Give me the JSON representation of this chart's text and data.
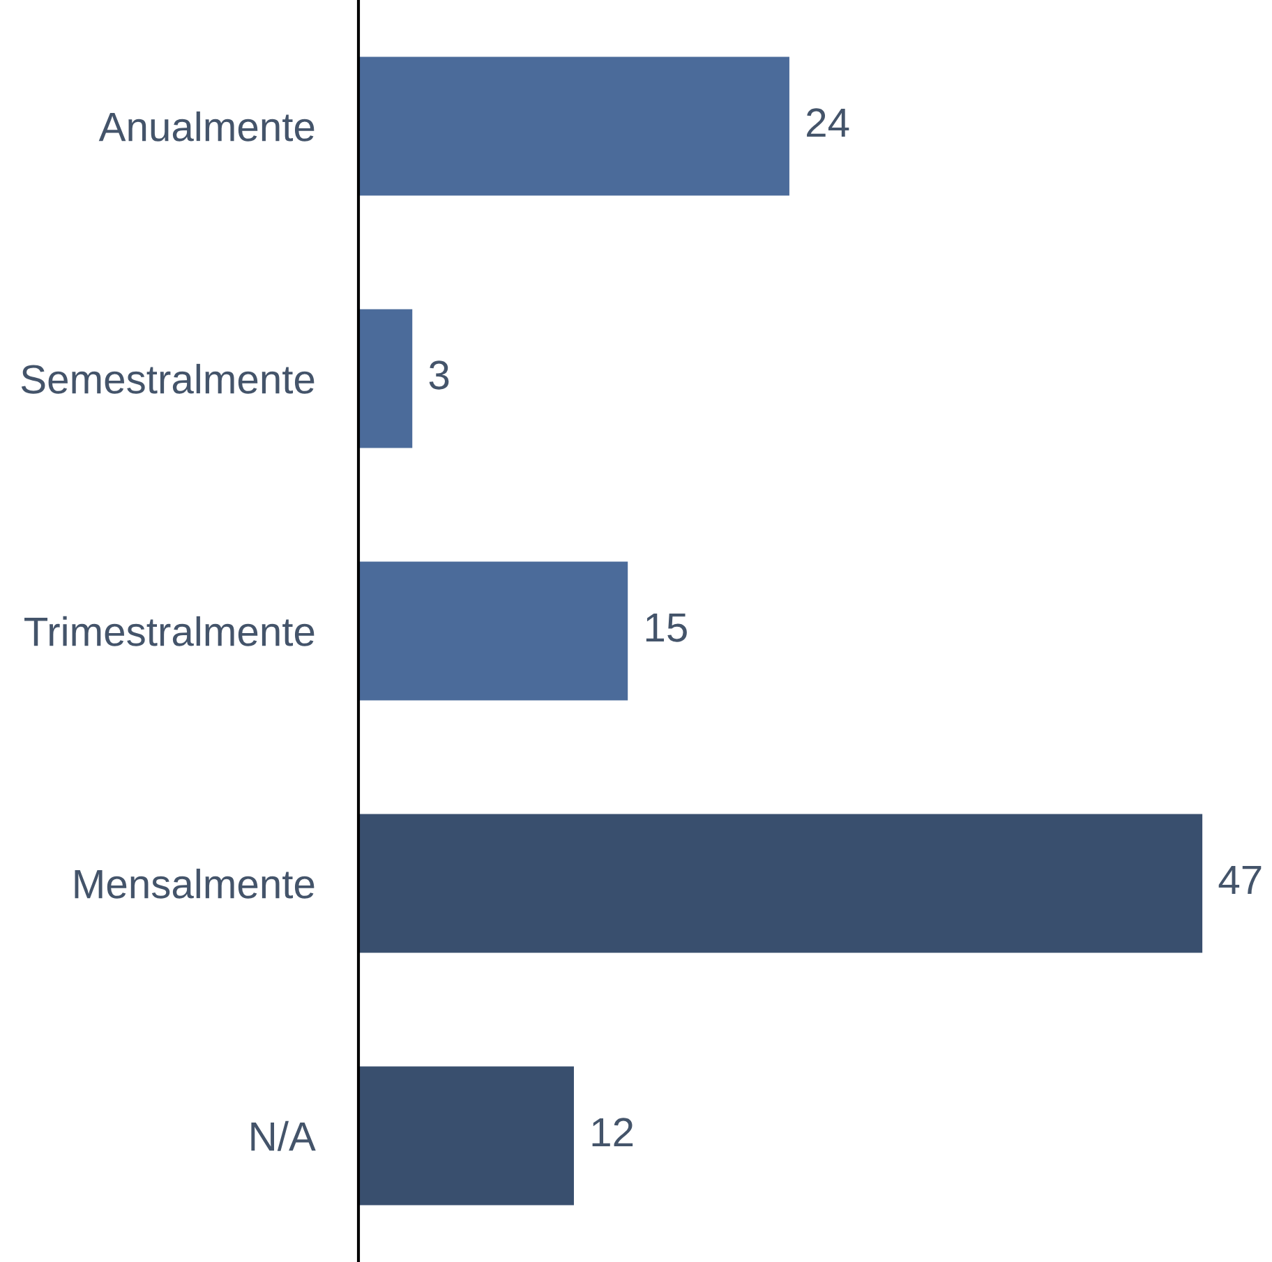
{
  "chart_data": {
    "type": "bar",
    "orientation": "horizontal",
    "categories": [
      "Anualmente",
      "Semestralmente",
      "Trimestralmente",
      "Mensalmente",
      "N/A"
    ],
    "values": [
      24,
      3,
      15,
      47,
      12
    ],
    "colors": [
      "#4b6b9a",
      "#4b6b9a",
      "#4b6b9a",
      "#394f6e",
      "#394f6e"
    ],
    "data_labels": true,
    "grid": false,
    "legend": false,
    "tick_labels": "y"
  }
}
